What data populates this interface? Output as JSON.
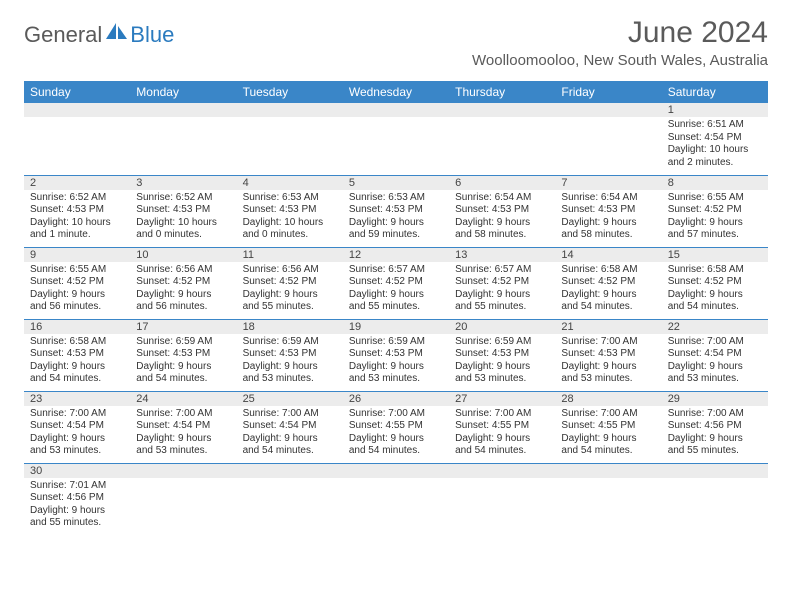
{
  "brand": {
    "general": "General",
    "blue": "Blue"
  },
  "title": "June 2024",
  "location": "Woolloomooloo, New South Wales, Australia",
  "colors": {
    "header_bg": "#3a86c8",
    "header_text": "#ffffff",
    "daynum_bg": "#ececec",
    "row_divider": "#3a86c8",
    "brand_blue": "#2b7bbf",
    "brand_gray": "#5a5a5a"
  },
  "day_labels": [
    "Sunday",
    "Monday",
    "Tuesday",
    "Wednesday",
    "Thursday",
    "Friday",
    "Saturday"
  ],
  "weeks": [
    [
      null,
      null,
      null,
      null,
      null,
      null,
      {
        "n": "1",
        "sr": "Sunrise: 6:51 AM",
        "ss": "Sunset: 4:54 PM",
        "d1": "Daylight: 10 hours",
        "d2": "and 2 minutes."
      }
    ],
    [
      {
        "n": "2",
        "sr": "Sunrise: 6:52 AM",
        "ss": "Sunset: 4:53 PM",
        "d1": "Daylight: 10 hours",
        "d2": "and 1 minute."
      },
      {
        "n": "3",
        "sr": "Sunrise: 6:52 AM",
        "ss": "Sunset: 4:53 PM",
        "d1": "Daylight: 10 hours",
        "d2": "and 0 minutes."
      },
      {
        "n": "4",
        "sr": "Sunrise: 6:53 AM",
        "ss": "Sunset: 4:53 PM",
        "d1": "Daylight: 10 hours",
        "d2": "and 0 minutes."
      },
      {
        "n": "5",
        "sr": "Sunrise: 6:53 AM",
        "ss": "Sunset: 4:53 PM",
        "d1": "Daylight: 9 hours",
        "d2": "and 59 minutes."
      },
      {
        "n": "6",
        "sr": "Sunrise: 6:54 AM",
        "ss": "Sunset: 4:53 PM",
        "d1": "Daylight: 9 hours",
        "d2": "and 58 minutes."
      },
      {
        "n": "7",
        "sr": "Sunrise: 6:54 AM",
        "ss": "Sunset: 4:53 PM",
        "d1": "Daylight: 9 hours",
        "d2": "and 58 minutes."
      },
      {
        "n": "8",
        "sr": "Sunrise: 6:55 AM",
        "ss": "Sunset: 4:52 PM",
        "d1": "Daylight: 9 hours",
        "d2": "and 57 minutes."
      }
    ],
    [
      {
        "n": "9",
        "sr": "Sunrise: 6:55 AM",
        "ss": "Sunset: 4:52 PM",
        "d1": "Daylight: 9 hours",
        "d2": "and 56 minutes."
      },
      {
        "n": "10",
        "sr": "Sunrise: 6:56 AM",
        "ss": "Sunset: 4:52 PM",
        "d1": "Daylight: 9 hours",
        "d2": "and 56 minutes."
      },
      {
        "n": "11",
        "sr": "Sunrise: 6:56 AM",
        "ss": "Sunset: 4:52 PM",
        "d1": "Daylight: 9 hours",
        "d2": "and 55 minutes."
      },
      {
        "n": "12",
        "sr": "Sunrise: 6:57 AM",
        "ss": "Sunset: 4:52 PM",
        "d1": "Daylight: 9 hours",
        "d2": "and 55 minutes."
      },
      {
        "n": "13",
        "sr": "Sunrise: 6:57 AM",
        "ss": "Sunset: 4:52 PM",
        "d1": "Daylight: 9 hours",
        "d2": "and 55 minutes."
      },
      {
        "n": "14",
        "sr": "Sunrise: 6:58 AM",
        "ss": "Sunset: 4:52 PM",
        "d1": "Daylight: 9 hours",
        "d2": "and 54 minutes."
      },
      {
        "n": "15",
        "sr": "Sunrise: 6:58 AM",
        "ss": "Sunset: 4:52 PM",
        "d1": "Daylight: 9 hours",
        "d2": "and 54 minutes."
      }
    ],
    [
      {
        "n": "16",
        "sr": "Sunrise: 6:58 AM",
        "ss": "Sunset: 4:53 PM",
        "d1": "Daylight: 9 hours",
        "d2": "and 54 minutes."
      },
      {
        "n": "17",
        "sr": "Sunrise: 6:59 AM",
        "ss": "Sunset: 4:53 PM",
        "d1": "Daylight: 9 hours",
        "d2": "and 54 minutes."
      },
      {
        "n": "18",
        "sr": "Sunrise: 6:59 AM",
        "ss": "Sunset: 4:53 PM",
        "d1": "Daylight: 9 hours",
        "d2": "and 53 minutes."
      },
      {
        "n": "19",
        "sr": "Sunrise: 6:59 AM",
        "ss": "Sunset: 4:53 PM",
        "d1": "Daylight: 9 hours",
        "d2": "and 53 minutes."
      },
      {
        "n": "20",
        "sr": "Sunrise: 6:59 AM",
        "ss": "Sunset: 4:53 PM",
        "d1": "Daylight: 9 hours",
        "d2": "and 53 minutes."
      },
      {
        "n": "21",
        "sr": "Sunrise: 7:00 AM",
        "ss": "Sunset: 4:53 PM",
        "d1": "Daylight: 9 hours",
        "d2": "and 53 minutes."
      },
      {
        "n": "22",
        "sr": "Sunrise: 7:00 AM",
        "ss": "Sunset: 4:54 PM",
        "d1": "Daylight: 9 hours",
        "d2": "and 53 minutes."
      }
    ],
    [
      {
        "n": "23",
        "sr": "Sunrise: 7:00 AM",
        "ss": "Sunset: 4:54 PM",
        "d1": "Daylight: 9 hours",
        "d2": "and 53 minutes."
      },
      {
        "n": "24",
        "sr": "Sunrise: 7:00 AM",
        "ss": "Sunset: 4:54 PM",
        "d1": "Daylight: 9 hours",
        "d2": "and 53 minutes."
      },
      {
        "n": "25",
        "sr": "Sunrise: 7:00 AM",
        "ss": "Sunset: 4:54 PM",
        "d1": "Daylight: 9 hours",
        "d2": "and 54 minutes."
      },
      {
        "n": "26",
        "sr": "Sunrise: 7:00 AM",
        "ss": "Sunset: 4:55 PM",
        "d1": "Daylight: 9 hours",
        "d2": "and 54 minutes."
      },
      {
        "n": "27",
        "sr": "Sunrise: 7:00 AM",
        "ss": "Sunset: 4:55 PM",
        "d1": "Daylight: 9 hours",
        "d2": "and 54 minutes."
      },
      {
        "n": "28",
        "sr": "Sunrise: 7:00 AM",
        "ss": "Sunset: 4:55 PM",
        "d1": "Daylight: 9 hours",
        "d2": "and 54 minutes."
      },
      {
        "n": "29",
        "sr": "Sunrise: 7:00 AM",
        "ss": "Sunset: 4:56 PM",
        "d1": "Daylight: 9 hours",
        "d2": "and 55 minutes."
      }
    ],
    [
      {
        "n": "30",
        "sr": "Sunrise: 7:01 AM",
        "ss": "Sunset: 4:56 PM",
        "d1": "Daylight: 9 hours",
        "d2": "and 55 minutes."
      },
      null,
      null,
      null,
      null,
      null,
      null
    ]
  ]
}
